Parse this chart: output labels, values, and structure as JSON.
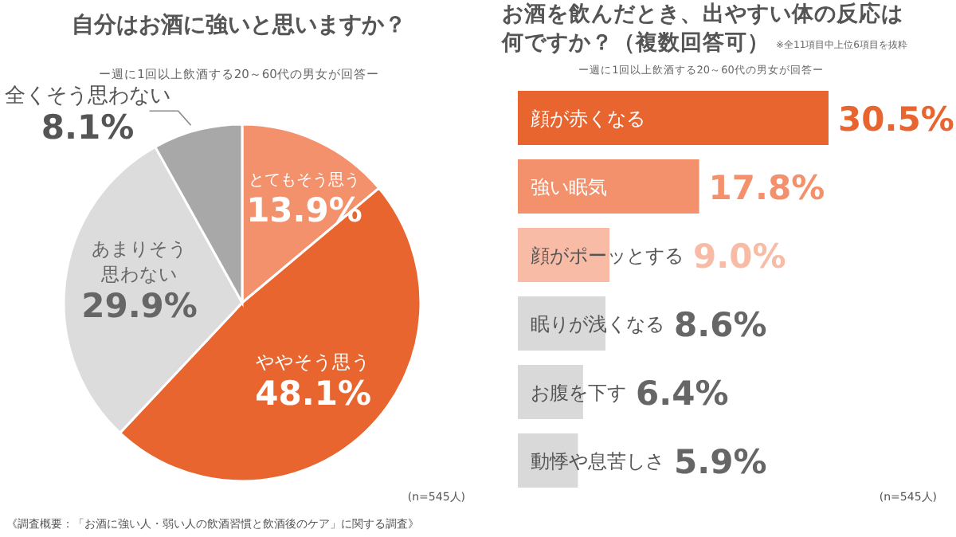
{
  "chart_data": [
    {
      "type": "pie",
      "title": "自分はお酒に強いと思いますか？",
      "subtitle": "ー週に1回以上飲酒する20～60代の男女が回答ー",
      "categories": [
        "とてもそう思う",
        "ややそう思う",
        "あまりそう思わない",
        "全くそう思わない"
      ],
      "values": [
        13.9,
        48.1,
        29.9,
        8.1
      ],
      "colors": [
        "#f4916d",
        "#e8652f",
        "#dcdcdc",
        "#a8a8a8"
      ],
      "value_labels": [
        "13.9%",
        "48.1%",
        "29.9%",
        "8.1%"
      ],
      "annotations": [
        "(n=545人)",
        "《調査概要：「お酒に強い人・弱い人の飲酒習慣と飲酒後のケア」に関する調査》"
      ]
    },
    {
      "type": "bar",
      "orientation": "horizontal",
      "title": "お酒を飲んだとき、出やすい体の反応は何ですか？（複数回答可）",
      "subtitle": "ー週に1回以上飲酒する20～60代の男女が回答ー",
      "categories": [
        "顔が赤くなる",
        "強い眠気",
        "顔がポーッとする",
        "眠りが浅くなる",
        "お腹を下す",
        "動悸や息苦しさ"
      ],
      "values": [
        30.5,
        17.8,
        9.0,
        8.6,
        6.4,
        5.9
      ],
      "colors": [
        "#e8652f",
        "#f4916d",
        "#f8bca6",
        "#d9d9d9",
        "#d9d9d9",
        "#d9d9d9"
      ],
      "value_labels": [
        "30.5%",
        "17.8%",
        "9.0%",
        "8.6%",
        "6.4%",
        "5.9%"
      ],
      "annotations": [
        "※全11項目中上位6項目を抜粋",
        "(n=545人)"
      ]
    }
  ]
}
